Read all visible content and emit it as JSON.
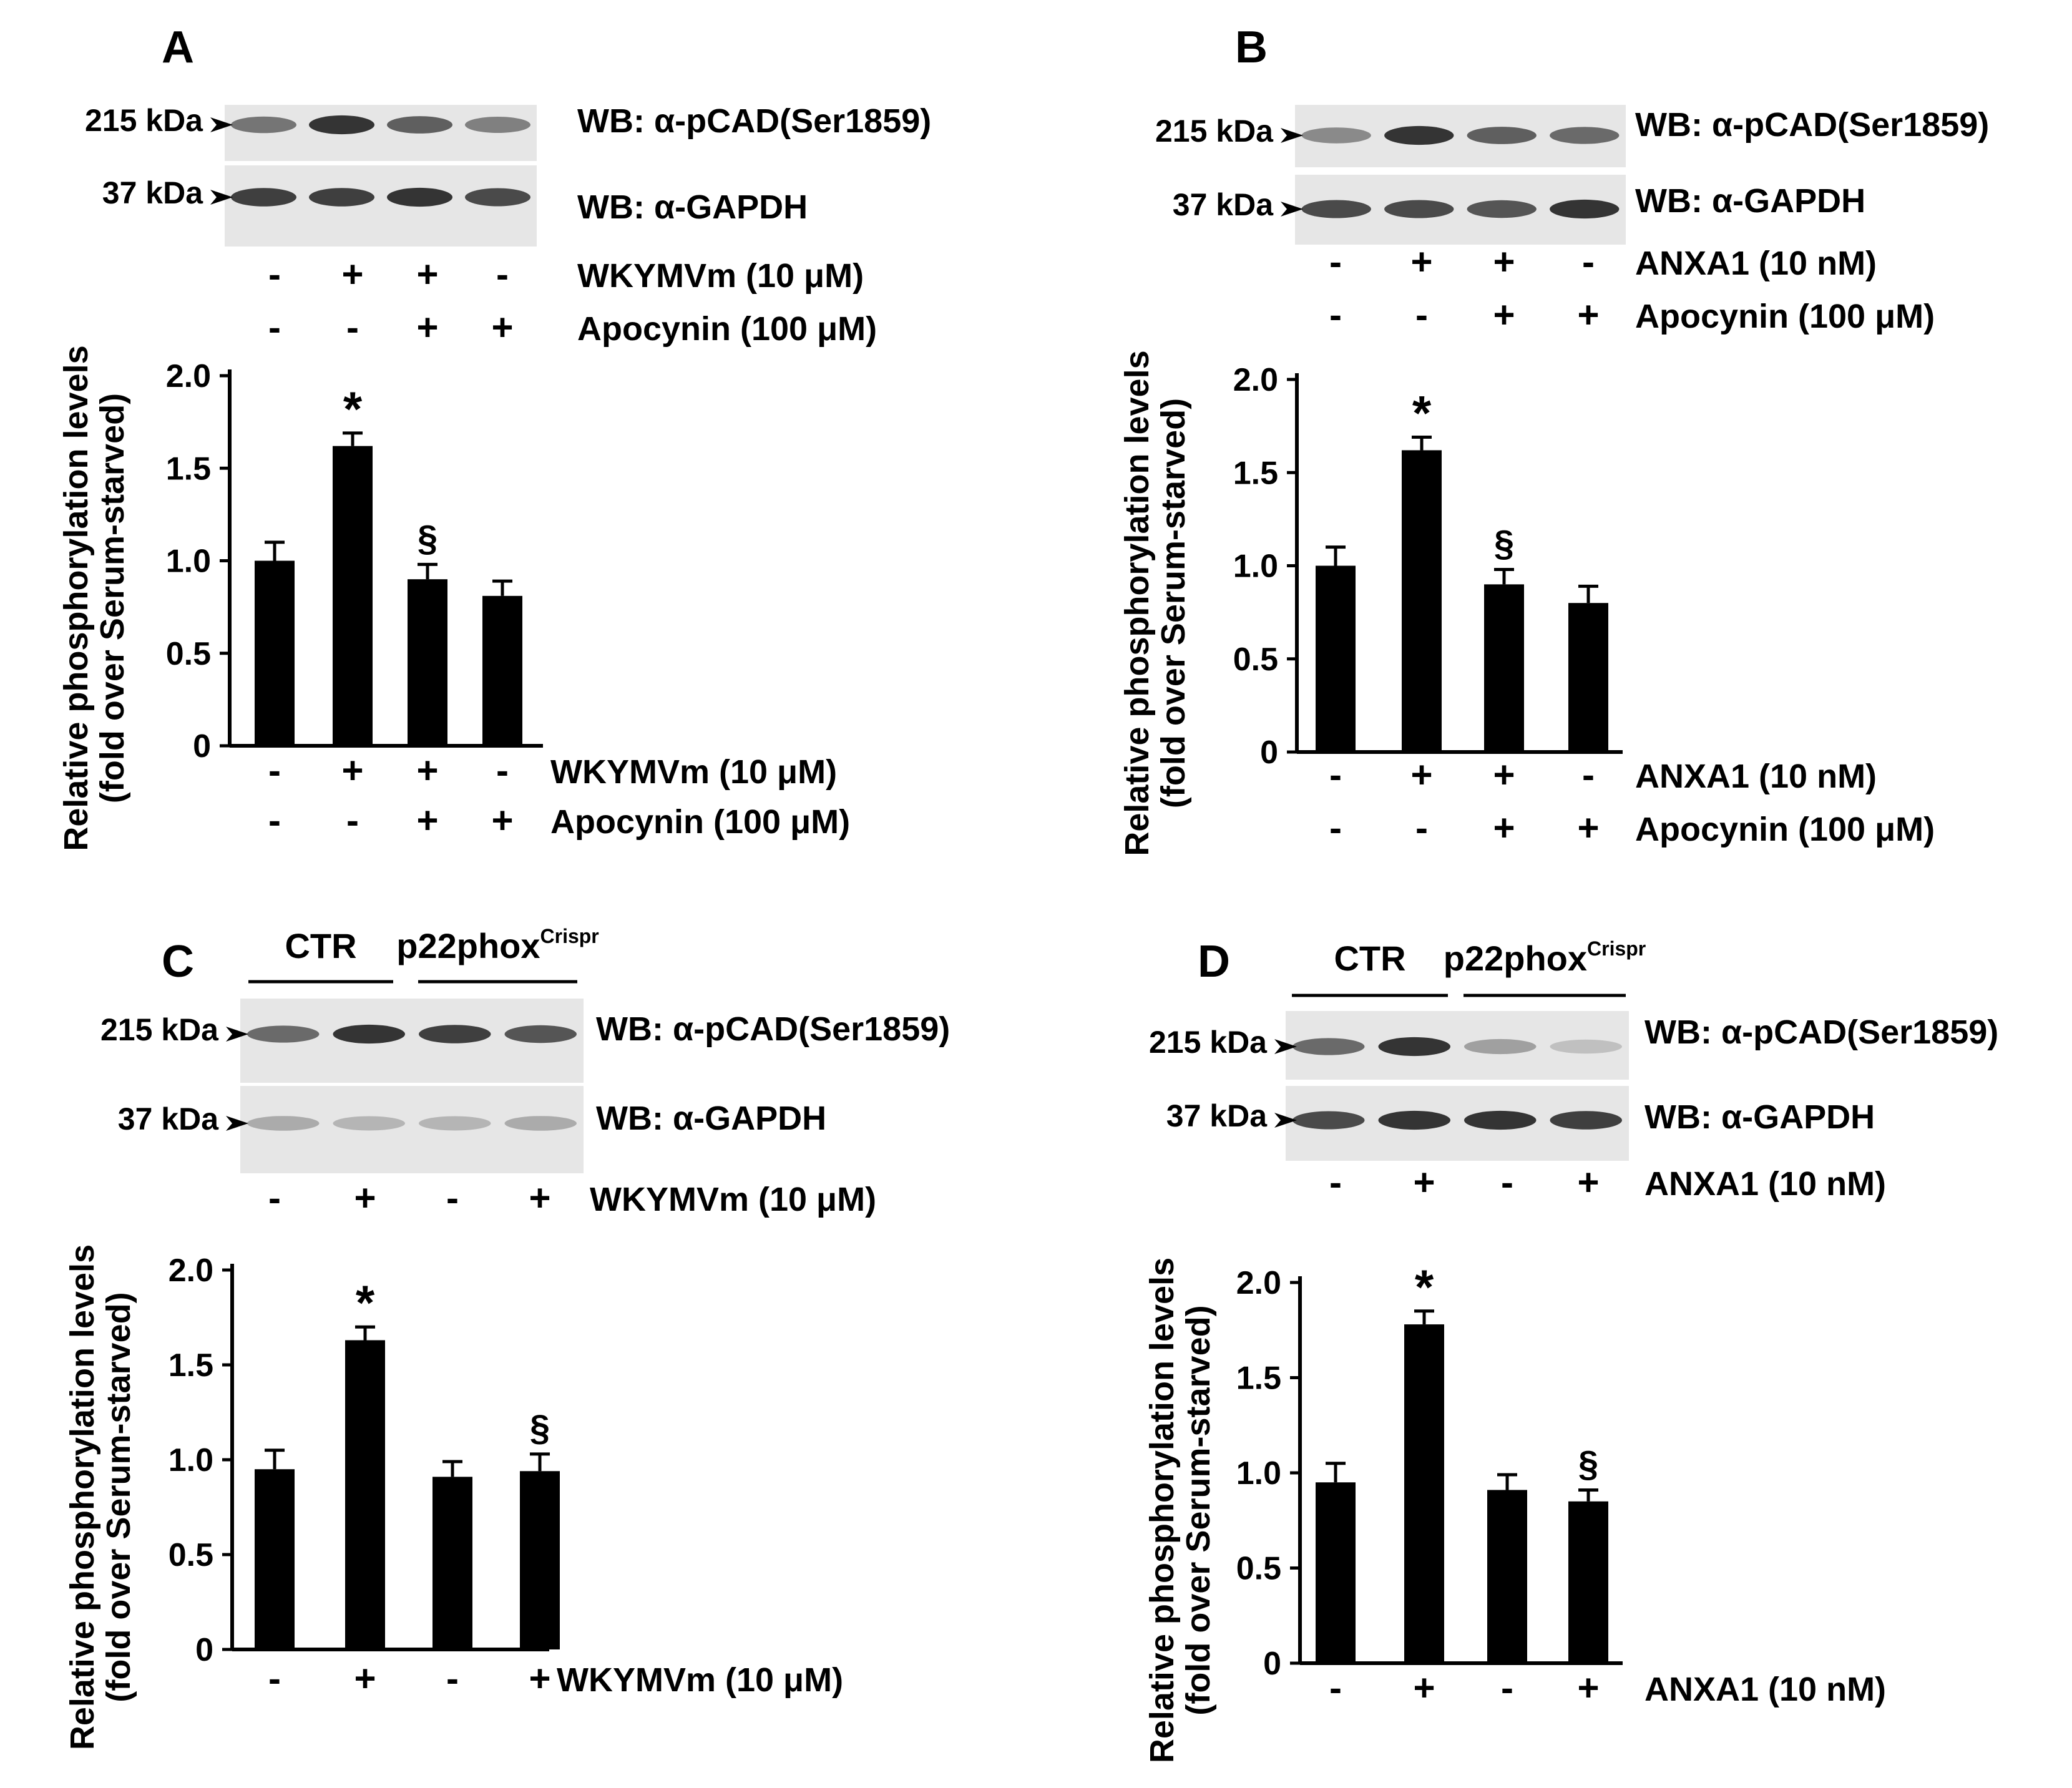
{
  "panels": [
    {
      "letter": "A",
      "group_labels": null,
      "blots": [
        {
          "marker": "215 kDa",
          "label": "WB: α-pCAD(Ser1859)",
          "bands": [
            0.55,
            0.85,
            0.65,
            0.5
          ]
        },
        {
          "marker": "37 kDa",
          "label": "WB: α-GAPDH",
          "bands": [
            0.8,
            0.8,
            0.85,
            0.75
          ]
        }
      ],
      "treatment_rows": [
        {
          "label": "WKYMVm (10 μM)",
          "signs": [
            "-",
            "+",
            "+",
            "-"
          ]
        },
        {
          "label": "Apocynin (100 μM)",
          "signs": [
            "-",
            "-",
            "+",
            "+"
          ]
        }
      ],
      "chart_data": {
        "type": "bar",
        "ylabel": [
          "Relative phosphorylation levels",
          "(fold over Serum-starved)"
        ],
        "ylim": [
          0,
          2.0
        ],
        "yticks": [
          "0",
          "0.5",
          "1.0",
          "1.5",
          "2.0"
        ],
        "values": [
          1.0,
          1.62,
          0.9,
          0.81
        ],
        "errors": [
          0.1,
          0.07,
          0.08,
          0.08
        ],
        "annotations": [
          "",
          "*",
          "§",
          ""
        ]
      }
    },
    {
      "letter": "B",
      "group_labels": null,
      "blots": [
        {
          "marker": "215 kDa",
          "label": "WB: α-pCAD(Ser1859)",
          "bands": [
            0.45,
            0.85,
            0.65,
            0.6
          ]
        },
        {
          "marker": "37 kDa",
          "label": "WB: α-GAPDH",
          "bands": [
            0.75,
            0.75,
            0.7,
            0.85
          ]
        }
      ],
      "treatment_rows": [
        {
          "label": "ANXA1 (10 nM)",
          "signs": [
            "-",
            "+",
            "+",
            "-"
          ]
        },
        {
          "label": "Apocynin (100 μM)",
          "signs": [
            "-",
            "-",
            "+",
            "+"
          ]
        }
      ],
      "chart_data": {
        "type": "bar",
        "ylabel": [
          "Relative phosphorylation levels",
          "(fold over Serum-starved)"
        ],
        "ylim": [
          0,
          2.0
        ],
        "yticks": [
          "0",
          "0.5",
          "1.0",
          "1.5",
          "2.0"
        ],
        "values": [
          1.0,
          1.62,
          0.9,
          0.8
        ],
        "errors": [
          0.1,
          0.07,
          0.08,
          0.09
        ],
        "annotations": [
          "",
          "*",
          "§",
          ""
        ]
      }
    },
    {
      "letter": "C",
      "group_labels": [
        {
          "text": "CTR",
          "sup": ""
        },
        {
          "text": "p22phox",
          "sup": "Crispr"
        }
      ],
      "blots": [
        {
          "marker": "215 kDa",
          "label": "WB: α-pCAD(Ser1859)",
          "bands": [
            0.6,
            0.85,
            0.8,
            0.7
          ]
        },
        {
          "marker": "37 kDa",
          "label": "WB: α-GAPDH",
          "bands": [
            0.3,
            0.25,
            0.25,
            0.3
          ]
        }
      ],
      "treatment_rows": [
        {
          "label": "WKYMVm (10 μM)",
          "signs": [
            "-",
            "+",
            "-",
            "+"
          ]
        }
      ],
      "chart_data": {
        "type": "bar",
        "ylabel": [
          "Relative phosphorylation levels",
          "(fold over Serum-starved)"
        ],
        "ylim": [
          0,
          2.0
        ],
        "yticks": [
          "0",
          "0.5",
          "1.0",
          "1.5",
          "2.0"
        ],
        "values": [
          0.95,
          1.63,
          0.91,
          0.94
        ],
        "errors": [
          0.1,
          0.07,
          0.08,
          0.09
        ],
        "annotations": [
          "",
          "*",
          "",
          "§"
        ]
      }
    },
    {
      "letter": "D",
      "group_labels": [
        {
          "text": "CTR",
          "sup": ""
        },
        {
          "text": "p22phox",
          "sup": "Crispr"
        }
      ],
      "blots": [
        {
          "marker": "215 kDa",
          "label": "WB: α-pCAD(Ser1859)",
          "bands": [
            0.6,
            0.85,
            0.35,
            0.2
          ]
        },
        {
          "marker": "37 kDa",
          "label": "WB: α-GAPDH",
          "bands": [
            0.75,
            0.85,
            0.85,
            0.8
          ]
        }
      ],
      "treatment_rows": [
        {
          "label": "ANXA1 (10 nM)",
          "signs": [
            "-",
            "+",
            "-",
            "+"
          ]
        }
      ],
      "chart_data": {
        "type": "bar",
        "ylabel": [
          "Relative phosphorylation levels",
          "(fold over Serum-starved)"
        ],
        "ylim": [
          0,
          2.0
        ],
        "yticks": [
          "0",
          "0.5",
          "1.0",
          "1.5",
          "2.0"
        ],
        "values": [
          0.95,
          1.78,
          0.91,
          0.85
        ],
        "errors": [
          0.1,
          0.07,
          0.08,
          0.06
        ],
        "annotations": [
          "",
          "*",
          "",
          "§"
        ]
      }
    }
  ]
}
